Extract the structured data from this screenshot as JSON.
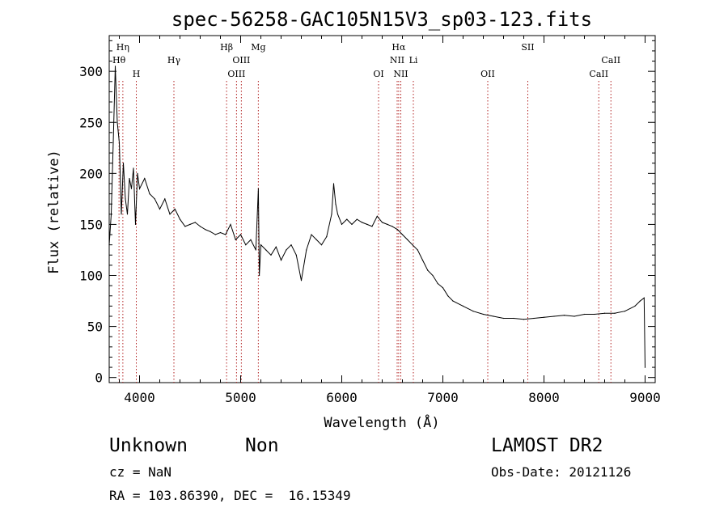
{
  "chart_data": {
    "type": "line",
    "title": "spec-56258-GAC105N15V3_sp03-123.fits",
    "xlabel": "Wavelength (Å)",
    "ylabel": "Flux (relative)",
    "xlim": [
      3700,
      9100
    ],
    "ylim": [
      -5,
      335
    ],
    "xticks": [
      4000,
      5000,
      6000,
      7000,
      8000,
      9000
    ],
    "yticks": [
      0,
      50,
      100,
      150,
      200,
      250,
      300
    ],
    "grid": false,
    "line_color": "#000000",
    "marker_color": "#b22222",
    "spectrum": {
      "x": [
        3700,
        3720,
        3740,
        3760,
        3780,
        3800,
        3820,
        3840,
        3860,
        3880,
        3900,
        3920,
        3940,
        3960,
        3980,
        4000,
        4050,
        4100,
        4150,
        4200,
        4250,
        4300,
        4350,
        4400,
        4450,
        4500,
        4550,
        4600,
        4650,
        4700,
        4750,
        4800,
        4850,
        4900,
        4950,
        5000,
        5050,
        5100,
        5150,
        5175,
        5185,
        5200,
        5250,
        5300,
        5350,
        5400,
        5450,
        5500,
        5550,
        5600,
        5650,
        5700,
        5750,
        5800,
        5850,
        5900,
        5920,
        5940,
        5960,
        6000,
        6050,
        6100,
        6150,
        6200,
        6250,
        6300,
        6350,
        6400,
        6450,
        6500,
        6550,
        6600,
        6650,
        6700,
        6750,
        6800,
        6850,
        6900,
        6950,
        7000,
        7050,
        7100,
        7200,
        7300,
        7400,
        7500,
        7600,
        7700,
        7800,
        7900,
        8000,
        8100,
        8200,
        8300,
        8400,
        8500,
        8600,
        8700,
        8800,
        8900,
        8950,
        8990,
        9000
      ],
      "y": [
        130,
        160,
        230,
        305,
        250,
        230,
        160,
        210,
        175,
        160,
        195,
        185,
        205,
        150,
        200,
        185,
        195,
        180,
        175,
        165,
        175,
        160,
        165,
        155,
        148,
        150,
        152,
        148,
        145,
        143,
        140,
        142,
        140,
        150,
        135,
        140,
        130,
        135,
        125,
        185,
        100,
        130,
        125,
        120,
        128,
        115,
        125,
        130,
        120,
        95,
        125,
        140,
        135,
        130,
        138,
        160,
        190,
        170,
        160,
        150,
        155,
        150,
        155,
        152,
        150,
        148,
        158,
        152,
        150,
        148,
        145,
        140,
        135,
        130,
        125,
        115,
        105,
        100,
        92,
        88,
        80,
        75,
        70,
        65,
        62,
        60,
        58,
        58,
        57,
        58,
        59,
        60,
        61,
        60,
        62,
        62,
        63,
        63,
        65,
        70,
        75,
        78,
        10
      ]
    },
    "lines": [
      {
        "name": "Hη",
        "x": 3835,
        "row": 1
      },
      {
        "name": "Hθ",
        "x": 3797,
        "row": 2
      },
      {
        "name": "H",
        "x": 3968,
        "row": 3
      },
      {
        "name": "Hγ",
        "x": 4340,
        "row": 2
      },
      {
        "name": "Hβ",
        "x": 4861,
        "row": 1
      },
      {
        "name": "OIII",
        "x": 4959,
        "row": 3
      },
      {
        "name": "OIII",
        "x": 5007,
        "row": 2
      },
      {
        "name": "Mg",
        "x": 5175,
        "row": 1
      },
      {
        "name": "OI",
        "x": 6364,
        "row": 3
      },
      {
        "name": "Hα",
        "x": 6563,
        "row": 1
      },
      {
        "name": "NII",
        "x": 6548,
        "row": 2
      },
      {
        "name": "NII",
        "x": 6584,
        "row": 3
      },
      {
        "name": "Li",
        "x": 6708,
        "row": 2
      },
      {
        "name": "OII",
        "x": 7444,
        "row": 3
      },
      {
        "name": "SII",
        "x": 7840,
        "row": 1
      },
      {
        "name": "CaII",
        "x": 8542,
        "row": 3
      },
      {
        "name": "CaII",
        "x": 8662,
        "row": 2
      }
    ]
  },
  "info": {
    "object_type": "Unknown",
    "object_subclass": "Non",
    "survey": "LAMOST DR2",
    "redshift": "cz = NaN",
    "obs_date": "Obs-Date: 20121126",
    "coords": "RA = 103.86390, DEC =  16.15349"
  }
}
